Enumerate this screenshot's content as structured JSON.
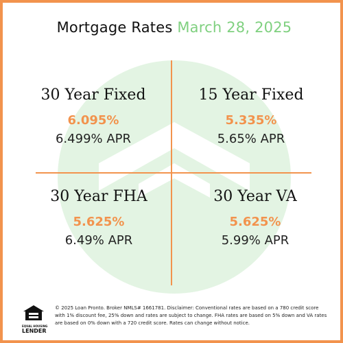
{
  "header": {
    "title_main": "Mortgage Rates",
    "title_date": "March 28, 2025"
  },
  "rates": [
    {
      "name": "30 Year Fixed",
      "rate": "6.095%",
      "apr": "6.499% APR"
    },
    {
      "name": "15 Year Fixed",
      "rate": "5.335%",
      "apr": "5.65% APR"
    },
    {
      "name": "30 Year FHA",
      "rate": "5.625%",
      "apr": "6.49% APR"
    },
    {
      "name": "30 Year VA",
      "rate": "5.625%",
      "apr": "5.99% APR"
    }
  ],
  "footer": {
    "ehl_line1": "EQUAL HOUSING",
    "ehl_line2": "LENDER",
    "disclaimer": "© 2025 Loan Pronto. Broker NMLS# 1661781. Disclaimer: Conventional rates are based on a 780 credit score with 1% discount fee, 25% down and rates are subject to change. FHA rates are based on 5% down and VA rates are based on 0% down with a 720 credit score. Rates can change without notice."
  },
  "colors": {
    "accent_orange": "#f2934d",
    "accent_green": "#7fd07f",
    "watermark_green": "#e3f4e3"
  },
  "icons": {
    "watermark": "house-circle-logo",
    "footer": "equal-housing-lender-icon"
  }
}
